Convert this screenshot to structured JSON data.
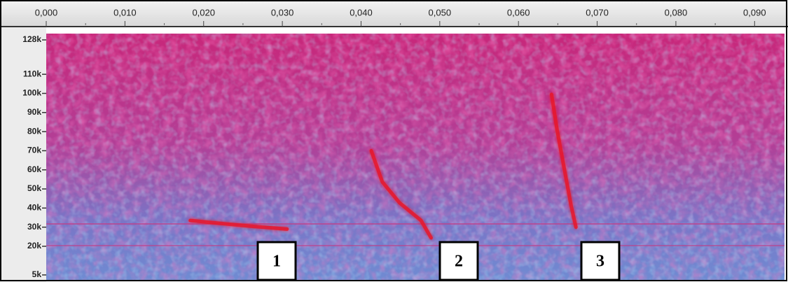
{
  "chart_data": {
    "type": "spectrogram",
    "xlim": [
      0,
      0.0938
    ],
    "xticks": [
      {
        "value": 0,
        "label": "0,000"
      },
      {
        "value": 0.01,
        "label": "0,010"
      },
      {
        "value": 0.02,
        "label": "0,020"
      },
      {
        "value": 0.03,
        "label": "0,030"
      },
      {
        "value": 0.04,
        "label": "0,040"
      },
      {
        "value": 0.05,
        "label": "0,050"
      },
      {
        "value": 0.06,
        "label": "0,060"
      },
      {
        "value": 0.07,
        "label": "0,070"
      },
      {
        "value": 0.08,
        "label": "0,080"
      },
      {
        "value": 0.09,
        "label": "0,090"
      }
    ],
    "ylim": [
      2.4,
      131.3
    ],
    "yticks": [
      {
        "value": 128,
        "label": "128k"
      },
      {
        "value": 110,
        "label": "110k"
      },
      {
        "value": 100,
        "label": "100k"
      },
      {
        "value": 90,
        "label": "90k"
      },
      {
        "value": 80,
        "label": "80k"
      },
      {
        "value": 70,
        "label": "70k"
      },
      {
        "value": 60,
        "label": "60k"
      },
      {
        "value": 50,
        "label": "50k"
      },
      {
        "value": 40,
        "label": "40k"
      },
      {
        "value": 30,
        "label": "30k"
      },
      {
        "value": 20,
        "label": "20k"
      },
      {
        "value": 5,
        "label": "5k"
      }
    ],
    "series": [
      {
        "color": "#e8182a",
        "x": [
          0.0183,
          0.022,
          0.026,
          0.0306
        ],
        "values": [
          33.5,
          32,
          30.5,
          29
        ]
      },
      {
        "color": "#e8182a",
        "x": [
          0.0413,
          0.0427,
          0.0449,
          0.0476,
          0.0489
        ],
        "values": [
          70,
          53.7,
          42.7,
          33.6,
          24.4
        ]
      },
      {
        "color": "#e8182a",
        "x": [
          0.0642,
          0.0649,
          0.0658,
          0.0667,
          0.0673
        ],
        "values": [
          99.5,
          81,
          61,
          41,
          30
        ]
      }
    ],
    "annotations": [
      "1",
      "2",
      "3"
    ]
  }
}
